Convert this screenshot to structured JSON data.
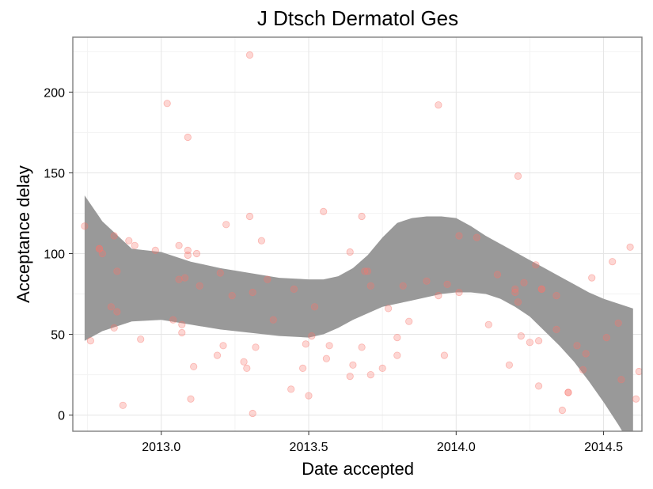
{
  "chart_data": {
    "type": "scatter",
    "title": "J Dtsch Dermatol Ges",
    "xlabel": "Date accepted",
    "ylabel": "Acceptance delay",
    "xlim": [
      2012.7,
      2014.63
    ],
    "ylim": [
      -10,
      234
    ],
    "x_ticks": [
      2013.0,
      2013.5,
      2014.0,
      2014.5
    ],
    "x_tick_labels": [
      "2013.0",
      "2013.5",
      "2014.0",
      "2014.5"
    ],
    "y_ticks": [
      0,
      50,
      100,
      150,
      200
    ],
    "y_tick_labels": [
      "0",
      "50",
      "100",
      "150",
      "200"
    ],
    "grid": true,
    "point_color": "#f8766d",
    "band_color": "#999999",
    "points": [
      {
        "x": 2012.74,
        "y": 117
      },
      {
        "x": 2012.76,
        "y": 46
      },
      {
        "x": 2012.79,
        "y": 103
      },
      {
        "x": 2012.79,
        "y": 103
      },
      {
        "x": 2012.8,
        "y": 100
      },
      {
        "x": 2012.83,
        "y": 67
      },
      {
        "x": 2012.84,
        "y": 54
      },
      {
        "x": 2012.84,
        "y": 111
      },
      {
        "x": 2012.85,
        "y": 64
      },
      {
        "x": 2012.85,
        "y": 89
      },
      {
        "x": 2012.87,
        "y": 6
      },
      {
        "x": 2012.89,
        "y": 108
      },
      {
        "x": 2012.91,
        "y": 105
      },
      {
        "x": 2012.93,
        "y": 47
      },
      {
        "x": 2012.98,
        "y": 102
      },
      {
        "x": 2013.02,
        "y": 193
      },
      {
        "x": 2013.04,
        "y": 59
      },
      {
        "x": 2013.06,
        "y": 84
      },
      {
        "x": 2013.06,
        "y": 105
      },
      {
        "x": 2013.07,
        "y": 56
      },
      {
        "x": 2013.07,
        "y": 51
      },
      {
        "x": 2013.08,
        "y": 85
      },
      {
        "x": 2013.09,
        "y": 102
      },
      {
        "x": 2013.09,
        "y": 172
      },
      {
        "x": 2013.09,
        "y": 99
      },
      {
        "x": 2013.1,
        "y": 10
      },
      {
        "x": 2013.11,
        "y": 30
      },
      {
        "x": 2013.12,
        "y": 100
      },
      {
        "x": 2013.13,
        "y": 80
      },
      {
        "x": 2013.19,
        "y": 37
      },
      {
        "x": 2013.2,
        "y": 88
      },
      {
        "x": 2013.21,
        "y": 43
      },
      {
        "x": 2013.22,
        "y": 118
      },
      {
        "x": 2013.24,
        "y": 74
      },
      {
        "x": 2013.28,
        "y": 33
      },
      {
        "x": 2013.29,
        "y": 29
      },
      {
        "x": 2013.3,
        "y": 123
      },
      {
        "x": 2013.3,
        "y": 223
      },
      {
        "x": 2013.31,
        "y": 76
      },
      {
        "x": 2013.31,
        "y": 1
      },
      {
        "x": 2013.32,
        "y": 42
      },
      {
        "x": 2013.34,
        "y": 108
      },
      {
        "x": 2013.36,
        "y": 84
      },
      {
        "x": 2013.38,
        "y": 59
      },
      {
        "x": 2013.44,
        "y": 16
      },
      {
        "x": 2013.45,
        "y": 78
      },
      {
        "x": 2013.48,
        "y": 29
      },
      {
        "x": 2013.49,
        "y": 44
      },
      {
        "x": 2013.5,
        "y": 12
      },
      {
        "x": 2013.51,
        "y": 49
      },
      {
        "x": 2013.52,
        "y": 67
      },
      {
        "x": 2013.55,
        "y": 126
      },
      {
        "x": 2013.56,
        "y": 35
      },
      {
        "x": 2013.57,
        "y": 43
      },
      {
        "x": 2013.64,
        "y": 101
      },
      {
        "x": 2013.64,
        "y": 24
      },
      {
        "x": 2013.65,
        "y": 31
      },
      {
        "x": 2013.68,
        "y": 123
      },
      {
        "x": 2013.68,
        "y": 42
      },
      {
        "x": 2013.69,
        "y": 89
      },
      {
        "x": 2013.7,
        "y": 89
      },
      {
        "x": 2013.71,
        "y": 80
      },
      {
        "x": 2013.71,
        "y": 25
      },
      {
        "x": 2013.75,
        "y": 29
      },
      {
        "x": 2013.77,
        "y": 66
      },
      {
        "x": 2013.8,
        "y": 48
      },
      {
        "x": 2013.8,
        "y": 37
      },
      {
        "x": 2013.82,
        "y": 80
      },
      {
        "x": 2013.84,
        "y": 58
      },
      {
        "x": 2013.9,
        "y": 83
      },
      {
        "x": 2013.94,
        "y": 74
      },
      {
        "x": 2013.94,
        "y": 192
      },
      {
        "x": 2013.96,
        "y": 37
      },
      {
        "x": 2013.97,
        "y": 81
      },
      {
        "x": 2014.01,
        "y": 76
      },
      {
        "x": 2014.01,
        "y": 111
      },
      {
        "x": 2014.07,
        "y": 110
      },
      {
        "x": 2014.11,
        "y": 56
      },
      {
        "x": 2014.14,
        "y": 87
      },
      {
        "x": 2014.18,
        "y": 31
      },
      {
        "x": 2014.2,
        "y": 76
      },
      {
        "x": 2014.2,
        "y": 78
      },
      {
        "x": 2014.21,
        "y": 70
      },
      {
        "x": 2014.21,
        "y": 148
      },
      {
        "x": 2014.22,
        "y": 49
      },
      {
        "x": 2014.23,
        "y": 82
      },
      {
        "x": 2014.25,
        "y": 45
      },
      {
        "x": 2014.27,
        "y": 93
      },
      {
        "x": 2014.28,
        "y": 46
      },
      {
        "x": 2014.28,
        "y": 18
      },
      {
        "x": 2014.29,
        "y": 78
      },
      {
        "x": 2014.29,
        "y": 78
      },
      {
        "x": 2014.34,
        "y": 53
      },
      {
        "x": 2014.34,
        "y": 74
      },
      {
        "x": 2014.36,
        "y": 3
      },
      {
        "x": 2014.38,
        "y": 14
      },
      {
        "x": 2014.38,
        "y": 14
      },
      {
        "x": 2014.41,
        "y": 43
      },
      {
        "x": 2014.43,
        "y": 28
      },
      {
        "x": 2014.44,
        "y": 38
      },
      {
        "x": 2014.46,
        "y": 85
      },
      {
        "x": 2014.51,
        "y": 48
      },
      {
        "x": 2014.53,
        "y": 95
      },
      {
        "x": 2014.55,
        "y": 57
      },
      {
        "x": 2014.56,
        "y": 22
      },
      {
        "x": 2014.59,
        "y": 104
      },
      {
        "x": 2014.61,
        "y": 10
      },
      {
        "x": 2014.62,
        "y": 27
      }
    ],
    "confidence_band": {
      "x": [
        2012.74,
        2012.8,
        2012.9,
        2013.0,
        2013.1,
        2013.2,
        2013.3,
        2013.4,
        2013.5,
        2013.55,
        2013.6,
        2013.65,
        2013.7,
        2013.75,
        2013.8,
        2013.85,
        2013.9,
        2013.95,
        2014.0,
        2014.05,
        2014.1,
        2014.15,
        2014.2,
        2014.25,
        2014.3,
        2014.35,
        2014.4,
        2014.45,
        2014.5,
        2014.55,
        2014.6
      ],
      "upper": [
        136,
        120,
        103,
        101,
        95,
        91,
        88,
        85,
        84,
        84,
        86,
        91,
        99,
        110,
        119,
        122,
        123,
        123,
        122,
        117,
        111,
        106,
        101,
        96,
        91,
        86,
        81,
        76,
        72,
        69,
        66
      ],
      "lower": [
        46,
        52,
        58,
        59,
        56,
        53,
        51,
        49,
        48,
        50,
        54,
        59,
        63,
        67,
        69,
        71,
        73,
        75,
        76,
        76,
        75,
        72,
        67,
        61,
        52,
        43,
        33,
        21,
        8,
        -6,
        -21
      ]
    }
  }
}
